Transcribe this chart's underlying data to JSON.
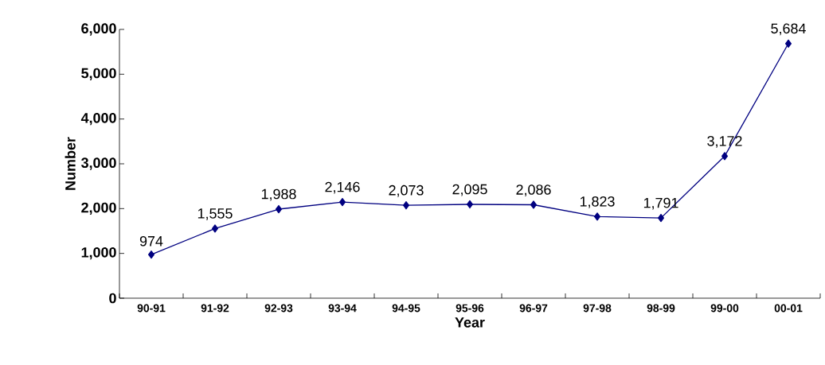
{
  "chart_data": {
    "type": "line",
    "xlabel": "Year",
    "ylabel": "Number",
    "categories": [
      "90-91",
      "91-92",
      "92-93",
      "93-94",
      "94-95",
      "95-96",
      "96-97",
      "97-98",
      "98-99",
      "99-00",
      "00-01"
    ],
    "values": [
      974,
      1555,
      1988,
      2146,
      2073,
      2095,
      2086,
      1823,
      1791,
      3172,
      5684
    ],
    "value_labels": [
      "974",
      "1,555",
      "1,988",
      "2,146",
      "2,073",
      "2,095",
      "2,086",
      "1,823",
      "1,791",
      "3,172",
      "5,684"
    ],
    "color": "#000080",
    "marker": "diamond",
    "line_style": "solid",
    "ylim": [
      0,
      6000
    ],
    "yticks": [
      {
        "value": 0,
        "label": "0"
      },
      {
        "value": 1000,
        "label": "1,000"
      },
      {
        "value": 2000,
        "label": "2,000"
      },
      {
        "value": 3000,
        "label": "3,000"
      },
      {
        "value": 4000,
        "label": "4,000"
      },
      {
        "value": 5000,
        "label": "5,000"
      },
      {
        "value": 6000,
        "label": "6,000"
      }
    ]
  }
}
